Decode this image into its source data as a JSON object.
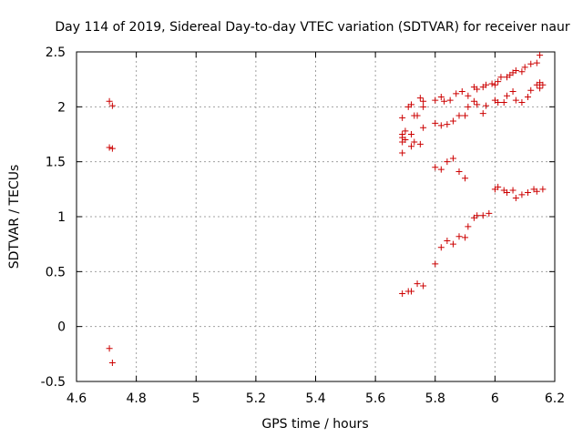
{
  "chart_data": {
    "type": "scatter",
    "title": "Day 114 of 2019, Sidereal Day-to-day VTEC variation (SDTVAR) for receiver naur",
    "xlabel": "GPS time / hours",
    "ylabel": "SDTVAR / TECUs",
    "xlim": [
      4.6,
      6.2
    ],
    "ylim": [
      -0.5,
      2.5
    ],
    "x_ticks": [
      "4.6",
      "4.8",
      "5",
      "5.2",
      "5.4",
      "5.6",
      "5.8",
      "6",
      "6.2"
    ],
    "y_ticks": [
      "-0.5",
      "0",
      "0.5",
      "1",
      "1.5",
      "2",
      "2.5"
    ],
    "grid": true,
    "marker": "+",
    "series": [
      {
        "name": "SDTVAR",
        "color": "#cc0000",
        "points": [
          [
            4.71,
            2.05
          ],
          [
            4.72,
            2.01
          ],
          [
            4.71,
            1.63
          ],
          [
            4.72,
            1.62
          ],
          [
            4.71,
            -0.2
          ],
          [
            4.72,
            -0.33
          ],
          [
            5.69,
            1.9
          ],
          [
            5.69,
            1.75
          ],
          [
            5.69,
            1.72
          ],
          [
            5.69,
            1.68
          ],
          [
            5.69,
            1.58
          ],
          [
            5.7,
            1.78
          ],
          [
            5.7,
            1.7
          ],
          [
            5.71,
            2.0
          ],
          [
            5.72,
            2.02
          ],
          [
            5.72,
            1.75
          ],
          [
            5.72,
            1.64
          ],
          [
            5.73,
            1.92
          ],
          [
            5.73,
            1.68
          ],
          [
            5.74,
            1.92
          ],
          [
            5.75,
            2.08
          ],
          [
            5.75,
            1.66
          ],
          [
            5.76,
            2.05
          ],
          [
            5.76,
            2.0
          ],
          [
            5.76,
            1.81
          ],
          [
            5.69,
            0.3
          ],
          [
            5.71,
            0.32
          ],
          [
            5.72,
            0.32
          ],
          [
            5.74,
            0.39
          ],
          [
            5.76,
            0.37
          ],
          [
            5.8,
            2.06
          ],
          [
            5.8,
            1.85
          ],
          [
            5.8,
            1.45
          ],
          [
            5.8,
            0.57
          ],
          [
            5.82,
            2.09
          ],
          [
            5.82,
            1.83
          ],
          [
            5.82,
            1.43
          ],
          [
            5.82,
            0.72
          ],
          [
            5.83,
            2.05
          ],
          [
            5.84,
            1.84
          ],
          [
            5.84,
            1.5
          ],
          [
            5.84,
            0.78
          ],
          [
            5.85,
            2.06
          ],
          [
            5.86,
            1.87
          ],
          [
            5.86,
            1.53
          ],
          [
            5.86,
            0.75
          ],
          [
            5.87,
            2.12
          ],
          [
            5.88,
            1.92
          ],
          [
            5.88,
            1.41
          ],
          [
            5.88,
            0.82
          ],
          [
            5.89,
            2.14
          ],
          [
            5.9,
            1.92
          ],
          [
            5.9,
            1.35
          ],
          [
            5.9,
            0.81
          ],
          [
            5.91,
            2.1
          ],
          [
            5.91,
            2.0
          ],
          [
            5.91,
            0.91
          ],
          [
            5.93,
            2.18
          ],
          [
            5.93,
            2.05
          ],
          [
            5.93,
            0.99
          ],
          [
            5.94,
            2.16
          ],
          [
            5.94,
            2.02
          ],
          [
            5.94,
            1.01
          ],
          [
            5.96,
            2.18
          ],
          [
            5.96,
            1.94
          ],
          [
            5.96,
            1.01
          ],
          [
            5.97,
            2.2
          ],
          [
            5.97,
            2.01
          ],
          [
            5.98,
            1.03
          ],
          [
            5.99,
            2.21
          ],
          [
            6.0,
            2.2
          ],
          [
            6.0,
            2.06
          ],
          [
            6.0,
            1.25
          ],
          [
            6.01,
            2.23
          ],
          [
            6.01,
            2.04
          ],
          [
            6.01,
            1.27
          ],
          [
            6.02,
            2.27
          ],
          [
            6.03,
            2.04
          ],
          [
            6.03,
            1.24
          ],
          [
            6.04,
            2.27
          ],
          [
            6.04,
            2.1
          ],
          [
            6.04,
            1.22
          ],
          [
            6.05,
            2.29
          ],
          [
            6.06,
            2.31
          ],
          [
            6.06,
            2.14
          ],
          [
            6.06,
            1.24
          ],
          [
            6.07,
            2.33
          ],
          [
            6.07,
            2.06
          ],
          [
            6.07,
            1.17
          ],
          [
            6.09,
            2.32
          ],
          [
            6.09,
            2.04
          ],
          [
            6.09,
            1.2
          ],
          [
            6.1,
            2.36
          ],
          [
            6.11,
            2.09
          ],
          [
            6.11,
            1.22
          ],
          [
            6.12,
            2.39
          ],
          [
            6.12,
            2.15
          ],
          [
            6.13,
            1.25
          ],
          [
            6.14,
            2.4
          ],
          [
            6.14,
            2.2
          ],
          [
            6.14,
            1.23
          ],
          [
            6.15,
            2.47
          ],
          [
            6.15,
            2.22
          ],
          [
            6.15,
            2.17
          ],
          [
            6.16,
            2.2
          ],
          [
            6.16,
            1.25
          ]
        ]
      }
    ]
  }
}
